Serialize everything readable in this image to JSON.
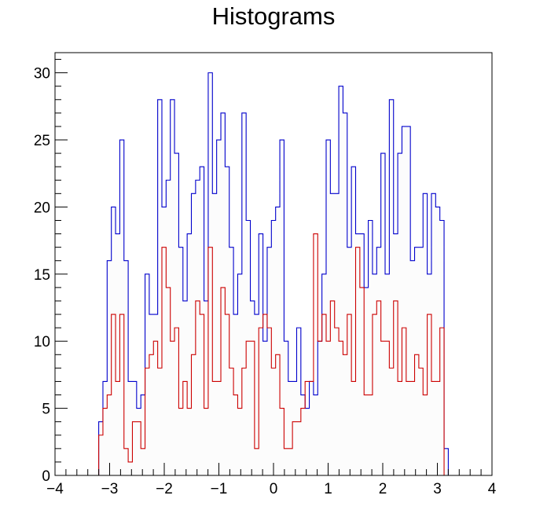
{
  "chart_data": {
    "type": "histogram",
    "title": "Histograms",
    "xlabel": "",
    "ylabel": "",
    "xlim": [
      -4,
      4
    ],
    "ylim": [
      0,
      31.5
    ],
    "x_ticks": [
      -4,
      -3,
      -2,
      -1,
      0,
      1,
      2,
      3,
      4
    ],
    "x_tick_labels": [
      "−4",
      "−3",
      "−2",
      "−1",
      "0",
      "1",
      "2",
      "3",
      "4"
    ],
    "y_ticks": [
      0,
      5,
      10,
      15,
      20,
      25,
      30
    ],
    "y_tick_labels": [
      "0",
      "5",
      "10",
      "15",
      "20",
      "25",
      "30"
    ],
    "bin_edges_range": [
      -3.2,
      3.2
    ],
    "grid": false,
    "series": [
      {
        "color": "#0000cc",
        "values": [
          4,
          7,
          16,
          20,
          18,
          25,
          16,
          7,
          7,
          5,
          6,
          15,
          12,
          12,
          28,
          20,
          22,
          28,
          24,
          17,
          13,
          18,
          21,
          22,
          23,
          13,
          30,
          21,
          25,
          27,
          23,
          17,
          12,
          15,
          27,
          19,
          13,
          12,
          18,
          10,
          17,
          19,
          20,
          25,
          10,
          7,
          7,
          11,
          6,
          5,
          7,
          6,
          10,
          15,
          25,
          21,
          21,
          29,
          27,
          17,
          23,
          18,
          18,
          14,
          19,
          15,
          17,
          24,
          15,
          28,
          18,
          24,
          26,
          26,
          16,
          17,
          17,
          21,
          15,
          21,
          20,
          19,
          2
        ]
      },
      {
        "color": "#cc0000",
        "values": [
          3,
          5,
          6,
          12,
          7,
          12,
          2,
          1,
          4,
          4,
          2,
          8,
          9,
          10,
          8,
          17,
          14,
          10,
          11,
          5,
          7,
          5,
          9,
          13,
          12,
          5,
          17,
          7,
          7,
          14,
          12,
          8,
          6,
          5,
          8,
          10,
          10,
          2,
          11,
          12,
          11,
          8,
          9,
          5,
          2,
          2,
          4,
          4,
          5,
          7,
          7,
          18,
          10,
          12,
          10,
          13,
          11,
          10,
          9,
          12,
          7,
          17,
          14,
          6,
          6,
          12,
          13,
          10,
          10,
          8,
          13,
          7,
          11,
          7,
          7,
          9,
          8,
          6,
          12,
          7,
          7,
          11,
          0
        ]
      }
    ]
  }
}
